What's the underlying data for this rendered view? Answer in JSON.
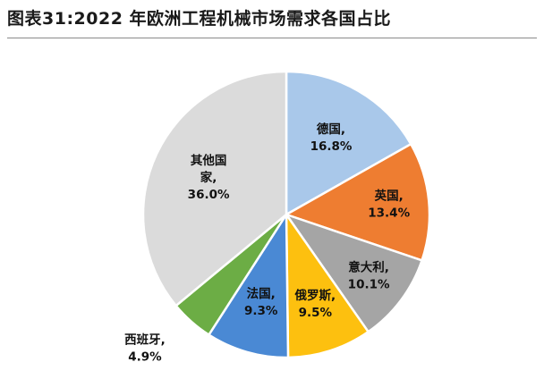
{
  "title": "图表31:2022 年欧洲工程机械市场需求各国占比",
  "chart_data": {
    "type": "pie",
    "start_angle_deg": 0,
    "direction": "clockwise",
    "slices": [
      {
        "name": "德国",
        "label_lines": [
          "德国,",
          "16.8%"
        ],
        "value": 16.8,
        "color": "#a9c8ea"
      },
      {
        "name": "英国",
        "label_lines": [
          "英国,",
          "13.4%"
        ],
        "value": 13.4,
        "color": "#ee7d31"
      },
      {
        "name": "意大利",
        "label_lines": [
          "意大利,",
          "10.1%"
        ],
        "value": 10.1,
        "color": "#a5a5a5"
      },
      {
        "name": "俄罗斯",
        "label_lines": [
          "俄罗斯,",
          "9.5%"
        ],
        "value": 9.5,
        "color": "#fdc00f"
      },
      {
        "name": "法国",
        "label_lines": [
          "法国,",
          "9.3%"
        ],
        "value": 9.3,
        "color": "#4a89d4"
      },
      {
        "name": "西班牙",
        "label_lines": [
          "西班牙,",
          "4.9%"
        ],
        "value": 4.9,
        "color": "#6cad45"
      },
      {
        "name": "其他国家",
        "label_lines": [
          "其他国",
          "家,",
          "36.0%"
        ],
        "value": 36.0,
        "color": "#dbdbdb"
      }
    ]
  }
}
